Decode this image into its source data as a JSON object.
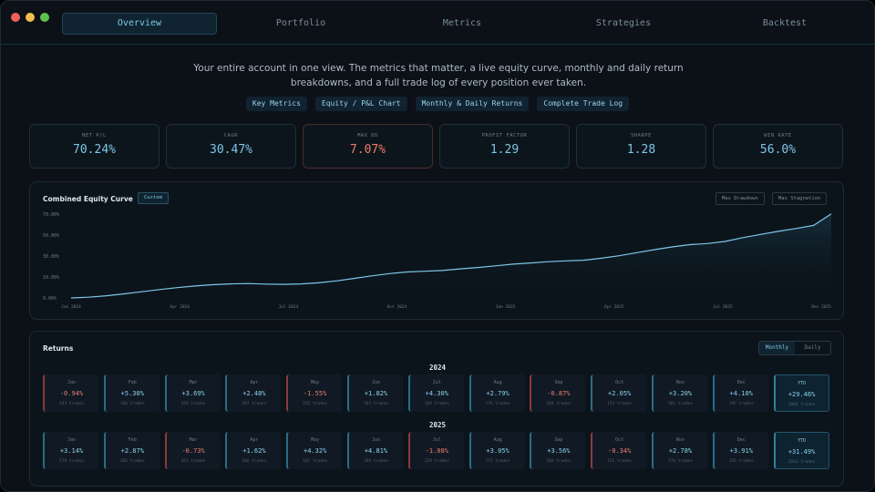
{
  "tabs": [
    {
      "label": "Overview",
      "active": true
    },
    {
      "label": "Portfolio",
      "active": false
    },
    {
      "label": "Metrics",
      "active": false
    },
    {
      "label": "Strategies",
      "active": false
    },
    {
      "label": "Backtest",
      "active": false
    }
  ],
  "intro": {
    "line1": "Your entire account in one view. The metrics that matter, a live equity curve, monthly and daily return",
    "line2": "breakdowns, and a full trade log of every position ever taken."
  },
  "chips": [
    "Key Metrics",
    "Equity / P&L Chart",
    "Monthly & Daily Returns",
    "Complete Trade Log"
  ],
  "kpis": [
    {
      "label": "NET P/L",
      "value": "70.24%",
      "negative": false
    },
    {
      "label": "CAGR",
      "value": "30.47%",
      "negative": false
    },
    {
      "label": "MAX DD",
      "value": "7.07%",
      "negative": true
    },
    {
      "label": "PROFIT FACTOR",
      "value": "1.29",
      "negative": false
    },
    {
      "label": "SHARPE",
      "value": "1.28",
      "negative": false
    },
    {
      "label": "WIN RATE",
      "value": "56.0%",
      "negative": false
    }
  ],
  "equity": {
    "title": "Combined Equity Curve",
    "badge": "Custom",
    "buttons": [
      "Max Drawdown",
      "Max Stagnation"
    ]
  },
  "chart_data": {
    "type": "area",
    "title": "Combined Equity Curve",
    "y_ticks": [
      "70.00%",
      "50.00%",
      "30.00%",
      "10.00%",
      "0.00%"
    ],
    "x_ticks": [
      "Jan 2024",
      "Apr 2024",
      "Jul 2024",
      "Oct 2024",
      "Jan 2025",
      "Apr 2025",
      "Jul 2025",
      "Dec 2025"
    ],
    "ylim": [
      0,
      70
    ],
    "series": [
      {
        "values": [
          0,
          0.6,
          1.8,
          3.4,
          5.2,
          7.0,
          8.6,
          10.0,
          11.0,
          11.7,
          12.0,
          11.6,
          11.3,
          11.7,
          12.6,
          14.2,
          16.3,
          18.4,
          20.3,
          21.7,
          22.3,
          22.9,
          24.3,
          25.4,
          26.8,
          28.2,
          29.2,
          30.3,
          31.0,
          31.5,
          33.2,
          35.2,
          37.8,
          40.3,
          42.6,
          44.5,
          45.4,
          47.2,
          50.4,
          53.0,
          55.6,
          58.0,
          60.6,
          70.2
        ]
      }
    ]
  },
  "returns": {
    "title": "Returns",
    "toggle": [
      "Monthly",
      "Daily"
    ],
    "years": [
      {
        "year": "2024",
        "months": [
          {
            "m": "Jan",
            "v": "-0.94%",
            "t": "143 trades",
            "neg": true
          },
          {
            "m": "Feb",
            "v": "+5.30%",
            "t": "160 trades",
            "neg": false
          },
          {
            "m": "Mar",
            "v": "+3.69%",
            "t": "193 trades",
            "neg": false
          },
          {
            "m": "Apr",
            "v": "+2.48%",
            "t": "187 trades",
            "neg": false
          },
          {
            "m": "May",
            "v": "-1.55%",
            "t": "155 trades",
            "neg": true
          },
          {
            "m": "Jun",
            "v": "+1.82%",
            "t": "163 trades",
            "neg": false
          },
          {
            "m": "Jul",
            "v": "+4.30%",
            "t": "169 trades",
            "neg": false
          },
          {
            "m": "Aug",
            "v": "+2.79%",
            "t": "176 trades",
            "neg": false
          },
          {
            "m": "Sep",
            "v": "-0.87%",
            "t": "168 trades",
            "neg": true
          },
          {
            "m": "Oct",
            "v": "+2.05%",
            "t": "153 trades",
            "neg": false
          },
          {
            "m": "Nov",
            "v": "+3.20%",
            "t": "181 trades",
            "neg": false
          },
          {
            "m": "Dec",
            "v": "+4.10%",
            "t": "192 trades",
            "neg": false
          },
          {
            "m": "YTD",
            "v": "+29.46%",
            "t": "2004 trades",
            "neg": false,
            "ytd": true
          }
        ]
      },
      {
        "year": "2025",
        "months": [
          {
            "m": "Jan",
            "v": "+3.14%",
            "t": "178 trades",
            "neg": false
          },
          {
            "m": "Feb",
            "v": "+2.87%",
            "t": "166 trades",
            "neg": false
          },
          {
            "m": "Mar",
            "v": "-0.73%",
            "t": "161 trades",
            "neg": true
          },
          {
            "m": "Apr",
            "v": "+1.62%",
            "t": "186 trades",
            "neg": false
          },
          {
            "m": "May",
            "v": "+4.32%",
            "t": "187 trades",
            "neg": false
          },
          {
            "m": "Jun",
            "v": "+4.81%",
            "t": "198 trades",
            "neg": false
          },
          {
            "m": "Jul",
            "v": "-1.08%",
            "t": "129 trades",
            "neg": true
          },
          {
            "m": "Aug",
            "v": "+3.05%",
            "t": "172 trades",
            "neg": false
          },
          {
            "m": "Sep",
            "v": "+3.56%",
            "t": "186 trades",
            "neg": false
          },
          {
            "m": "Oct",
            "v": "-0.34%",
            "t": "152 trades",
            "neg": true
          },
          {
            "m": "Nov",
            "v": "+2.78%",
            "t": "176 trades",
            "neg": false
          },
          {
            "m": "Dec",
            "v": "+3.91%",
            "t": "192 trades",
            "neg": false
          },
          {
            "m": "YTD",
            "v": "+31.49%",
            "t": "2043 trades",
            "neg": false,
            "ytd": true
          }
        ]
      }
    ]
  }
}
